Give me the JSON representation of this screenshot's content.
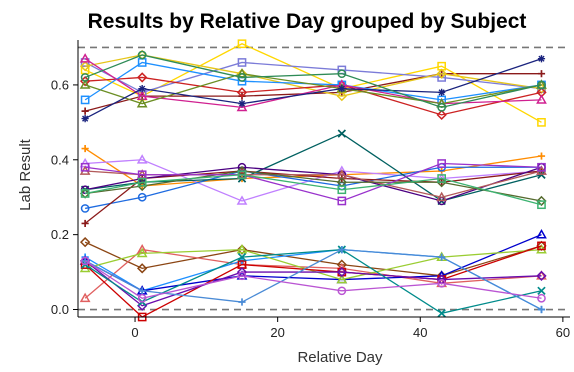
{
  "chart_data": {
    "type": "line",
    "title": "Results by Relative Day grouped by Subject",
    "xlabel": "Relative Day",
    "ylabel": "Lab Result",
    "xlim": [
      -8,
      61
    ],
    "ylim": [
      -0.02,
      0.72
    ],
    "xticks": [
      0,
      20,
      40,
      60
    ],
    "yticks": [
      0.0,
      0.2,
      0.4,
      0.6
    ],
    "ytick_labels": [
      "0.0",
      "0.2",
      "0.4",
      "0.6"
    ],
    "reference_lines": [
      0.0,
      0.7
    ],
    "grid": false,
    "legend": "none",
    "x": [
      -7,
      1,
      15,
      29,
      43,
      57
    ],
    "series": [
      {
        "color": "#8b1a1a",
        "marker": "plus",
        "values": [
          0.53,
          0.57,
          0.57,
          0.58,
          0.63,
          0.63
        ]
      },
      {
        "color": "#ffd700",
        "marker": "square",
        "values": [
          0.64,
          0.57,
          0.71,
          0.59,
          0.65,
          0.5
        ]
      },
      {
        "color": "#7b7bd8",
        "marker": "square",
        "values": [
          0.66,
          0.58,
          0.66,
          0.64,
          0.62,
          0.59
        ]
      },
      {
        "color": "#e6c619",
        "marker": "diamond",
        "values": [
          0.65,
          0.68,
          0.63,
          0.57,
          0.63,
          0.59
        ]
      },
      {
        "color": "#cc2222",
        "marker": "diamond",
        "values": [
          0.61,
          0.62,
          0.58,
          0.6,
          0.52,
          0.58
        ]
      },
      {
        "color": "#1e90ff",
        "marker": "square",
        "values": [
          0.56,
          0.66,
          0.61,
          0.6,
          0.56,
          0.6
        ]
      },
      {
        "color": "#d02090",
        "marker": "triangle",
        "values": [
          0.67,
          0.57,
          0.54,
          0.6,
          0.55,
          0.56
        ]
      },
      {
        "color": "#6b8e23",
        "marker": "triangle",
        "values": [
          0.6,
          0.55,
          0.63,
          0.59,
          0.55,
          0.6
        ]
      },
      {
        "color": "#1a237e",
        "marker": "star",
        "values": [
          0.51,
          0.59,
          0.55,
          0.59,
          0.58,
          0.67
        ]
      },
      {
        "color": "#2e8b57",
        "marker": "circle",
        "values": [
          0.62,
          0.68,
          0.62,
          0.63,
          0.54,
          0.6
        ]
      },
      {
        "color": "#ff8c00",
        "marker": "plus",
        "values": [
          0.43,
          0.33,
          0.35,
          0.36,
          0.37,
          0.41
        ]
      },
      {
        "color": "#c080ff",
        "marker": "triangle",
        "values": [
          0.39,
          0.4,
          0.29,
          0.37,
          0.35,
          0.37
        ]
      },
      {
        "color": "#1e6be0",
        "marker": "circle",
        "values": [
          0.27,
          0.3,
          0.37,
          0.33,
          0.38,
          0.38
        ]
      },
      {
        "color": "#8b1a1a",
        "marker": "plus",
        "values": [
          0.23,
          0.35,
          0.37,
          0.35,
          0.34,
          0.37
        ]
      },
      {
        "color": "#006060",
        "marker": "x",
        "values": [
          0.32,
          0.34,
          0.35,
          0.47,
          0.29,
          0.36
        ]
      },
      {
        "color": "#4b0082",
        "marker": "circle",
        "values": [
          0.32,
          0.35,
          0.38,
          0.36,
          0.29,
          0.38
        ]
      },
      {
        "color": "#b25a5a",
        "marker": "triangle",
        "values": [
          0.37,
          0.36,
          0.36,
          0.36,
          0.3,
          0.37
        ]
      },
      {
        "color": "#556b2f",
        "marker": "diamond",
        "values": [
          0.31,
          0.33,
          0.37,
          0.34,
          0.34,
          0.29
        ]
      },
      {
        "color": "#9932cc",
        "marker": "square",
        "values": [
          0.38,
          0.36,
          0.36,
          0.29,
          0.39,
          0.38
        ]
      },
      {
        "color": "#3cb371",
        "marker": "square",
        "values": [
          0.31,
          0.34,
          0.36,
          0.32,
          0.35,
          0.28
        ]
      },
      {
        "color": "#8b4513",
        "marker": "diamond",
        "values": [
          0.18,
          0.11,
          0.16,
          0.12,
          0.09,
          0.17
        ]
      },
      {
        "color": "#e06060",
        "marker": "triangle",
        "values": [
          0.03,
          0.16,
          0.12,
          0.11,
          0.07,
          0.09
        ]
      },
      {
        "color": "#1e90ff",
        "marker": "plus",
        "values": [
          0.14,
          0.05,
          0.13,
          0.16,
          0.14,
          0.0
        ]
      },
      {
        "color": "#0000cd",
        "marker": "triangle",
        "values": [
          0.13,
          0.05,
          0.09,
          0.08,
          0.09,
          0.2
        ]
      },
      {
        "color": "#9acd32",
        "marker": "triangle",
        "values": [
          0.11,
          0.15,
          0.16,
          0.08,
          0.14,
          0.16
        ]
      },
      {
        "color": "#cc0000",
        "marker": "square",
        "values": [
          0.12,
          -0.02,
          0.12,
          0.1,
          0.08,
          0.17
        ]
      },
      {
        "color": "#6a0dad",
        "marker": "diamond",
        "values": [
          0.13,
          0.01,
          0.1,
          0.1,
          0.08,
          0.09
        ]
      },
      {
        "color": "#008b8b",
        "marker": "x",
        "values": [
          0.12,
          0.02,
          0.14,
          0.16,
          -0.01,
          0.05
        ]
      },
      {
        "color": "#4a8bd6",
        "marker": "plus",
        "values": [
          0.13,
          0.05,
          0.02,
          0.16,
          0.14,
          0.0
        ]
      },
      {
        "color": "#ba55d3",
        "marker": "circle",
        "values": [
          0.13,
          0.03,
          0.09,
          0.05,
          0.07,
          0.03
        ]
      }
    ]
  }
}
